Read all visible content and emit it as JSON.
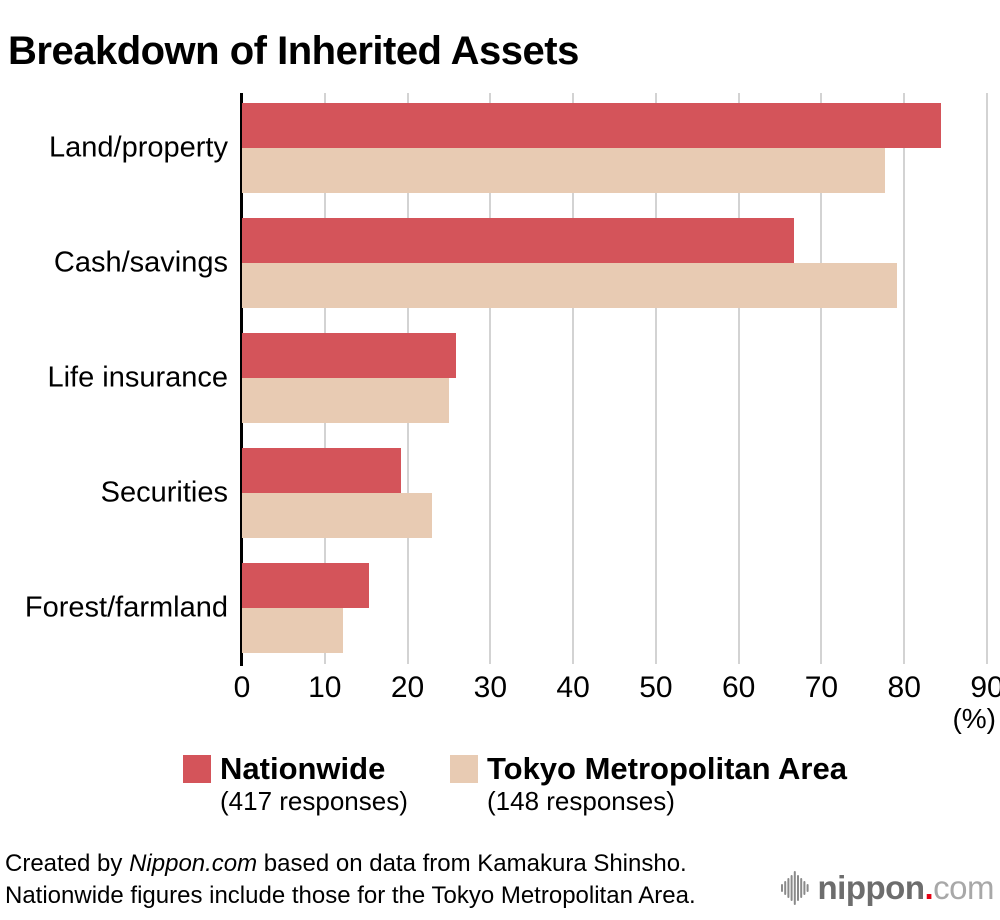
{
  "title": "Breakdown of Inherited Assets",
  "chart_data": {
    "type": "bar",
    "orientation": "horizontal",
    "title": "Breakdown of Inherited Assets",
    "categories": [
      "Land/property",
      "Cash/savings",
      "Life insurance",
      "Securities",
      "Forest/farmland"
    ],
    "series": [
      {
        "name": "Nationwide",
        "note": "(417 responses)",
        "color": "#d4545a",
        "values": [
          84.4,
          66.7,
          25.9,
          19.2,
          15.3
        ]
      },
      {
        "name": "Tokyo Metropolitan Area",
        "note": "(148 responses)",
        "color": "#e8cbb3",
        "values": [
          77.7,
          79.1,
          25.0,
          23.0,
          12.2
        ]
      }
    ],
    "xlim": [
      0,
      90
    ],
    "xticks": [
      0,
      10,
      20,
      30,
      40,
      50,
      60,
      70,
      80,
      90
    ],
    "unit_label": "(%)",
    "grid": "vertical",
    "gridline_color": "#d3d3d3",
    "axis_color": "#000000",
    "legend_position": "bottom"
  },
  "footer": {
    "line1_prefix": "Created by ",
    "line1_source": "Nippon.com",
    "line1_suffix": " based on data from Kamakura Shinsho.",
    "line2": "Nationwide figures include those for the Tokyo Metropolitan Area."
  },
  "logo": {
    "name": "nippon",
    "dot": ".",
    "tld": "com",
    "name_color": "#6d6d6d",
    "dot_color": "#e60012",
    "tld_color": "#a8a8a8"
  }
}
